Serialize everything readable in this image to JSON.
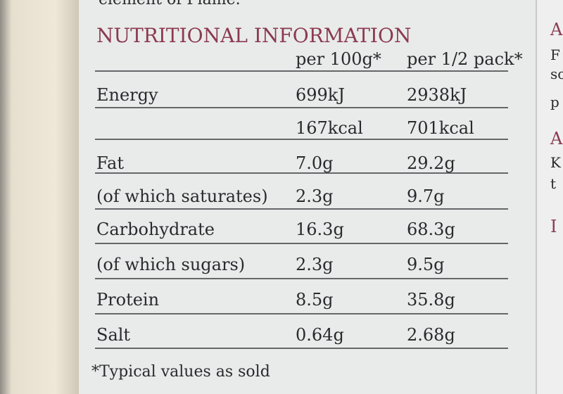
{
  "top_text": "element of Flame.",
  "title": "NUTRITIONAL INFORMATION",
  "columns": [
    "per 100g*",
    "per 1/2 pack*"
  ],
  "rows": [
    [
      "Energy",
      "699kJ",
      "2938kJ"
    ],
    [
      null,
      "167kcal",
      "701kcal"
    ],
    [
      "Fat",
      "7.0g",
      "29.2g"
    ],
    [
      "(of which saturates)",
      "2.3g",
      "9.7g"
    ],
    [
      "Carbohydrate",
      "16.3g",
      "68.3g"
    ],
    [
      "(of which sugars)",
      "2.3g",
      "9.5g"
    ],
    [
      "Protein",
      "8.5g",
      "35.8g"
    ],
    [
      "Salt",
      "0.64g",
      "2.68g"
    ]
  ],
  "footnote": "*Typical values as sold",
  "side_text": [
    "A",
    "F",
    "so",
    "p",
    "A",
    "K",
    "t",
    "I"
  ]
}
